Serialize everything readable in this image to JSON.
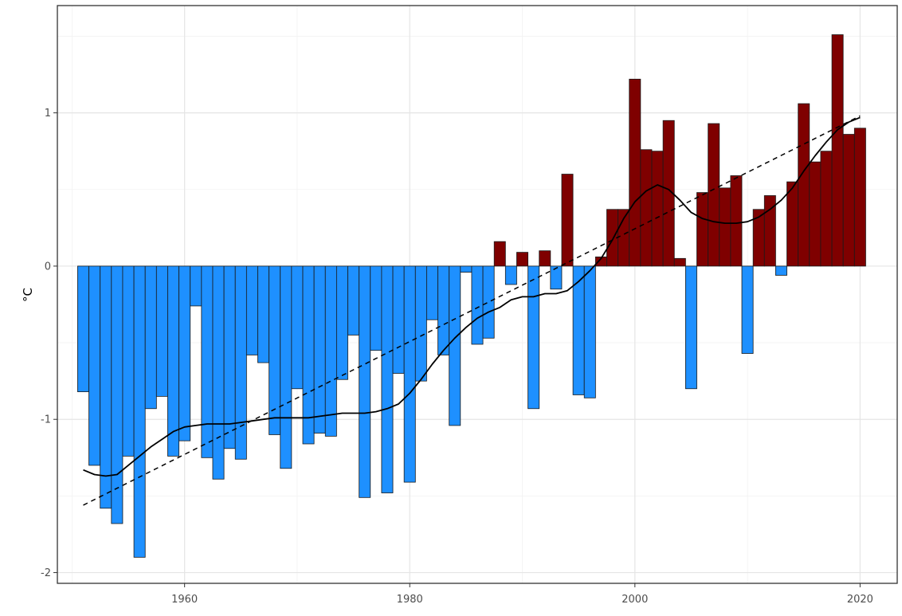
{
  "chart_data": {
    "type": "bar",
    "title": "",
    "xlabel": "",
    "ylabel": "°C",
    "xlim": [
      1948.7,
      2023.3
    ],
    "ylim": [
      -2.07,
      1.7
    ],
    "x_ticks": [
      1960,
      1980,
      2000,
      2020
    ],
    "y_ticks": [
      -2,
      -1,
      0,
      1
    ],
    "grid": true,
    "legend": "none",
    "colors": {
      "positive": "#7f0000",
      "negative": "#1e90ff",
      "bar_outline": "#1a1a1a",
      "smooth_line": "#000000",
      "trend_line": "#000000",
      "grid_major": "#e5e5e5",
      "grid_minor": "#f2f2f2",
      "panel_border": "#333333"
    },
    "years": [
      1951,
      1952,
      1953,
      1954,
      1955,
      1956,
      1957,
      1958,
      1959,
      1960,
      1961,
      1962,
      1963,
      1964,
      1965,
      1966,
      1967,
      1968,
      1969,
      1970,
      1971,
      1972,
      1973,
      1974,
      1975,
      1976,
      1977,
      1978,
      1979,
      1980,
      1981,
      1982,
      1983,
      1984,
      1985,
      1986,
      1987,
      1988,
      1989,
      1990,
      1991,
      1992,
      1993,
      1994,
      1995,
      1996,
      1997,
      1998,
      1999,
      2000,
      2001,
      2002,
      2003,
      2004,
      2005,
      2006,
      2007,
      2008,
      2009,
      2010,
      2011,
      2012,
      2013,
      2014,
      2015,
      2016,
      2017,
      2018,
      2019,
      2020
    ],
    "values": [
      -0.82,
      -1.3,
      -1.58,
      -1.68,
      -1.24,
      -1.9,
      -0.93,
      -0.85,
      -1.24,
      -1.14,
      -0.26,
      -1.25,
      -1.39,
      -1.19,
      -1.26,
      -0.58,
      -0.63,
      -1.1,
      -1.32,
      -0.8,
      -1.16,
      -1.09,
      -1.11,
      -0.74,
      -0.45,
      -1.51,
      -0.55,
      -1.48,
      -0.7,
      -1.41,
      -0.75,
      -0.35,
      -0.58,
      -1.04,
      -0.04,
      -0.51,
      -0.47,
      0.16,
      -0.12,
      0.09,
      -0.93,
      0.1,
      -0.15,
      0.6,
      -0.84,
      -0.86,
      0.06,
      0.37,
      0.37,
      1.22,
      0.76,
      0.75,
      0.95,
      0.05,
      -0.8,
      0.48,
      0.93,
      0.51,
      0.59,
      -0.57,
      0.37,
      0.46,
      -0.06,
      0.55,
      1.06,
      0.68,
      0.75,
      1.51,
      0.86,
      0.9
    ],
    "smooth_line": {
      "x": [
        1951,
        1952,
        1953,
        1954,
        1955,
        1956,
        1957,
        1958,
        1959,
        1960,
        1961,
        1962,
        1963,
        1964,
        1965,
        1966,
        1967,
        1968,
        1969,
        1970,
        1971,
        1972,
        1973,
        1974,
        1975,
        1976,
        1977,
        1978,
        1979,
        1980,
        1981,
        1982,
        1983,
        1984,
        1985,
        1986,
        1987,
        1988,
        1989,
        1990,
        1991,
        1992,
        1993,
        1994,
        1995,
        1996,
        1997,
        1998,
        1999,
        2000,
        2001,
        2002,
        2003,
        2004,
        2005,
        2006,
        2007,
        2008,
        2009,
        2010,
        2011,
        2012,
        2013,
        2014,
        2015,
        2016,
        2017,
        2018,
        2019,
        2020
      ],
      "y": [
        -1.33,
        -1.36,
        -1.37,
        -1.36,
        -1.3,
        -1.24,
        -1.18,
        -1.13,
        -1.08,
        -1.05,
        -1.04,
        -1.03,
        -1.03,
        -1.03,
        -1.02,
        -1.01,
        -1.0,
        -0.99,
        -0.99,
        -0.99,
        -0.99,
        -0.98,
        -0.97,
        -0.96,
        -0.96,
        -0.96,
        -0.95,
        -0.93,
        -0.9,
        -0.83,
        -0.74,
        -0.64,
        -0.55,
        -0.47,
        -0.4,
        -0.34,
        -0.3,
        -0.27,
        -0.22,
        -0.2,
        -0.2,
        -0.18,
        -0.18,
        -0.16,
        -0.1,
        -0.03,
        0.05,
        0.17,
        0.31,
        0.42,
        0.49,
        0.53,
        0.5,
        0.43,
        0.35,
        0.31,
        0.29,
        0.28,
        0.28,
        0.29,
        0.32,
        0.37,
        0.43,
        0.51,
        0.62,
        0.72,
        0.81,
        0.89,
        0.94,
        0.97
      ]
    },
    "trend_line": {
      "x": [
        1951,
        2020
      ],
      "y": [
        -1.56,
        0.98
      ]
    }
  }
}
